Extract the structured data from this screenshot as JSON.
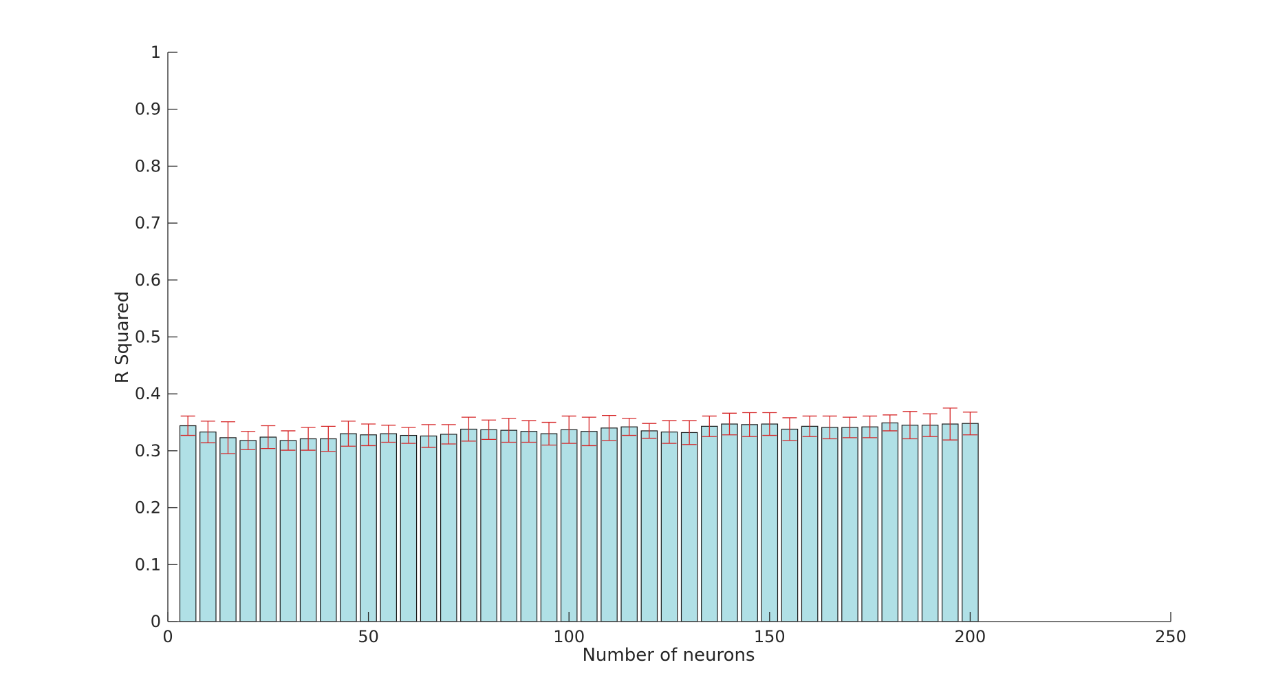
{
  "chart_data": {
    "type": "bar",
    "title": "",
    "xlabel": "Number of neurons",
    "ylabel": "R Squared",
    "xlim": [
      0,
      250
    ],
    "ylim": [
      0,
      1
    ],
    "xticks": [
      0,
      50,
      100,
      150,
      200,
      250
    ],
    "xtick_labels": [
      "0",
      "50",
      "100",
      "150",
      "200",
      "250"
    ],
    "yticks": [
      0,
      0.1,
      0.2,
      0.3,
      0.4,
      0.5,
      0.6,
      0.7,
      0.8,
      0.9,
      1
    ],
    "ytick_labels": [
      "0",
      "0.1",
      "0.2",
      "0.3",
      "0.4",
      "0.5",
      "0.6",
      "0.7",
      "0.8",
      "0.9",
      "1"
    ],
    "grid": false,
    "bar_color": "#b0e0e6",
    "error_bar_color": "#d62728",
    "x": [
      5,
      10,
      15,
      20,
      25,
      30,
      35,
      40,
      45,
      50,
      55,
      60,
      65,
      70,
      75,
      80,
      85,
      90,
      95,
      100,
      105,
      110,
      115,
      120,
      125,
      130,
      135,
      140,
      145,
      150,
      155,
      160,
      165,
      170,
      175,
      180,
      185,
      190,
      195,
      200
    ],
    "values": [
      0.344,
      0.333,
      0.323,
      0.318,
      0.324,
      0.318,
      0.321,
      0.321,
      0.33,
      0.328,
      0.33,
      0.327,
      0.326,
      0.329,
      0.338,
      0.337,
      0.336,
      0.334,
      0.33,
      0.337,
      0.334,
      0.34,
      0.342,
      0.335,
      0.333,
      0.332,
      0.343,
      0.347,
      0.346,
      0.347,
      0.338,
      0.343,
      0.341,
      0.341,
      0.342,
      0.349,
      0.345,
      0.345,
      0.347,
      0.348
    ],
    "error": [
      0.017,
      0.019,
      0.028,
      0.016,
      0.02,
      0.017,
      0.02,
      0.022,
      0.022,
      0.019,
      0.015,
      0.014,
      0.02,
      0.017,
      0.021,
      0.017,
      0.021,
      0.019,
      0.02,
      0.024,
      0.025,
      0.022,
      0.015,
      0.013,
      0.02,
      0.021,
      0.018,
      0.019,
      0.021,
      0.02,
      0.02,
      0.018,
      0.02,
      0.018,
      0.019,
      0.014,
      0.024,
      0.02,
      0.028,
      0.02
    ]
  }
}
